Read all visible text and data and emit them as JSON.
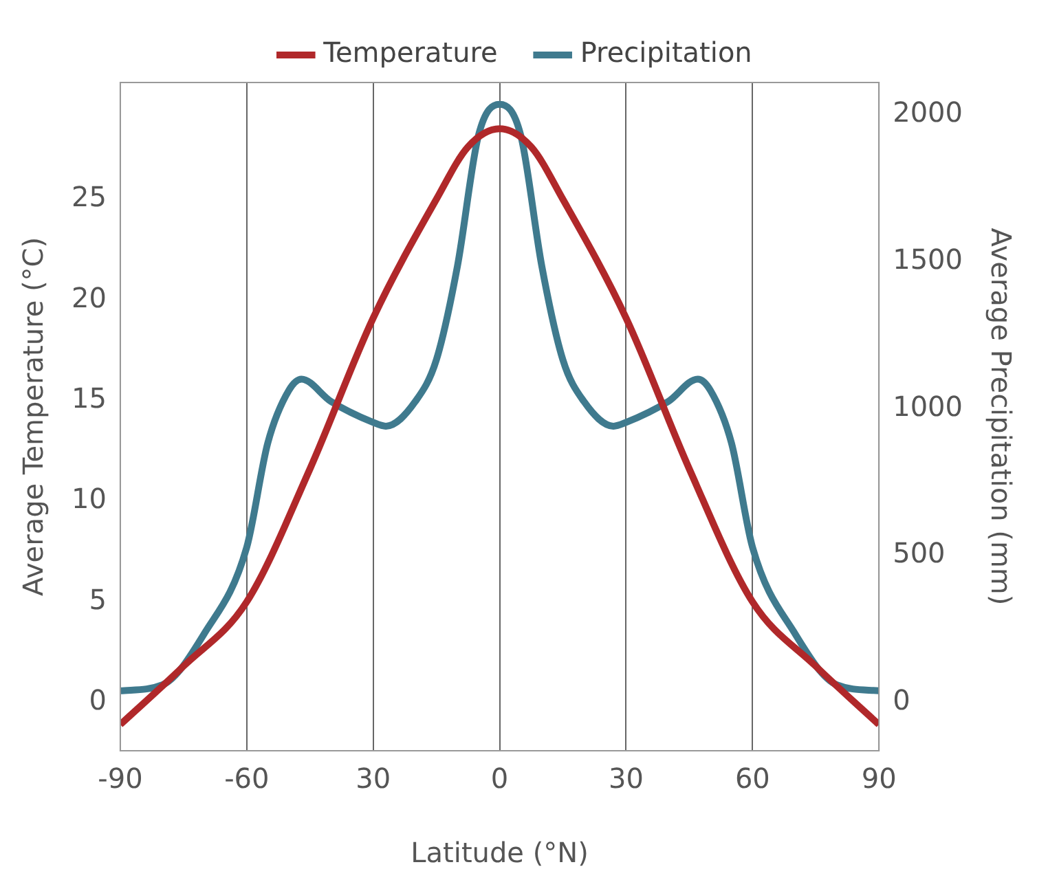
{
  "chart_data": {
    "type": "line",
    "xlabel": "Latitude (°N)",
    "ylabel": "Average Temperature (°C)",
    "y2label": "Average Precipitation (mm)",
    "xlim": [
      -90,
      90
    ],
    "xticks": [
      -90,
      -60,
      {
        "value": -30,
        "label": "30"
      },
      0,
      30,
      60,
      90
    ],
    "ylim": [
      -2.4,
      30.8
    ],
    "yticks": [
      0,
      5,
      10,
      15,
      20,
      25
    ],
    "y2lim": [
      -164,
      2109
    ],
    "y2ticks": [
      0,
      500,
      1000,
      1500,
      2000
    ],
    "grid": "x",
    "legend": "top",
    "series": [
      {
        "name": "Temperature",
        "color": "#b0282a",
        "x": [
          -90,
          -75,
          -60,
          -45,
          -30,
          -15,
          -7.5,
          0,
          7.5,
          15,
          30,
          45,
          60,
          75,
          90
        ],
        "values": [
          -1.1,
          1.8,
          5.0,
          11.6,
          19.1,
          25.0,
          27.6,
          28.5,
          27.6,
          25.0,
          19.1,
          11.6,
          5.0,
          1.8,
          -1.1
        ]
      },
      {
        "name": "Precipitation",
        "color": "#3f7a8e",
        "axis": "y2",
        "x": [
          -90,
          -80,
          -70,
          -60,
          -55,
          -50,
          -47,
          -40,
          -30,
          -27,
          -20,
          -15,
          -10,
          -5,
          0,
          5,
          10,
          15,
          20,
          27,
          30,
          40,
          47,
          50,
          55,
          60,
          70,
          80,
          90
        ],
        "values": [
          40,
          60,
          236,
          528,
          883,
          1062,
          1100,
          1024,
          953,
          940,
          1024,
          1166,
          1485,
          1930,
          2035,
          1930,
          1485,
          1166,
          1024,
          940,
          953,
          1024,
          1100,
          1062,
          883,
          528,
          236,
          60,
          40
        ]
      }
    ]
  }
}
